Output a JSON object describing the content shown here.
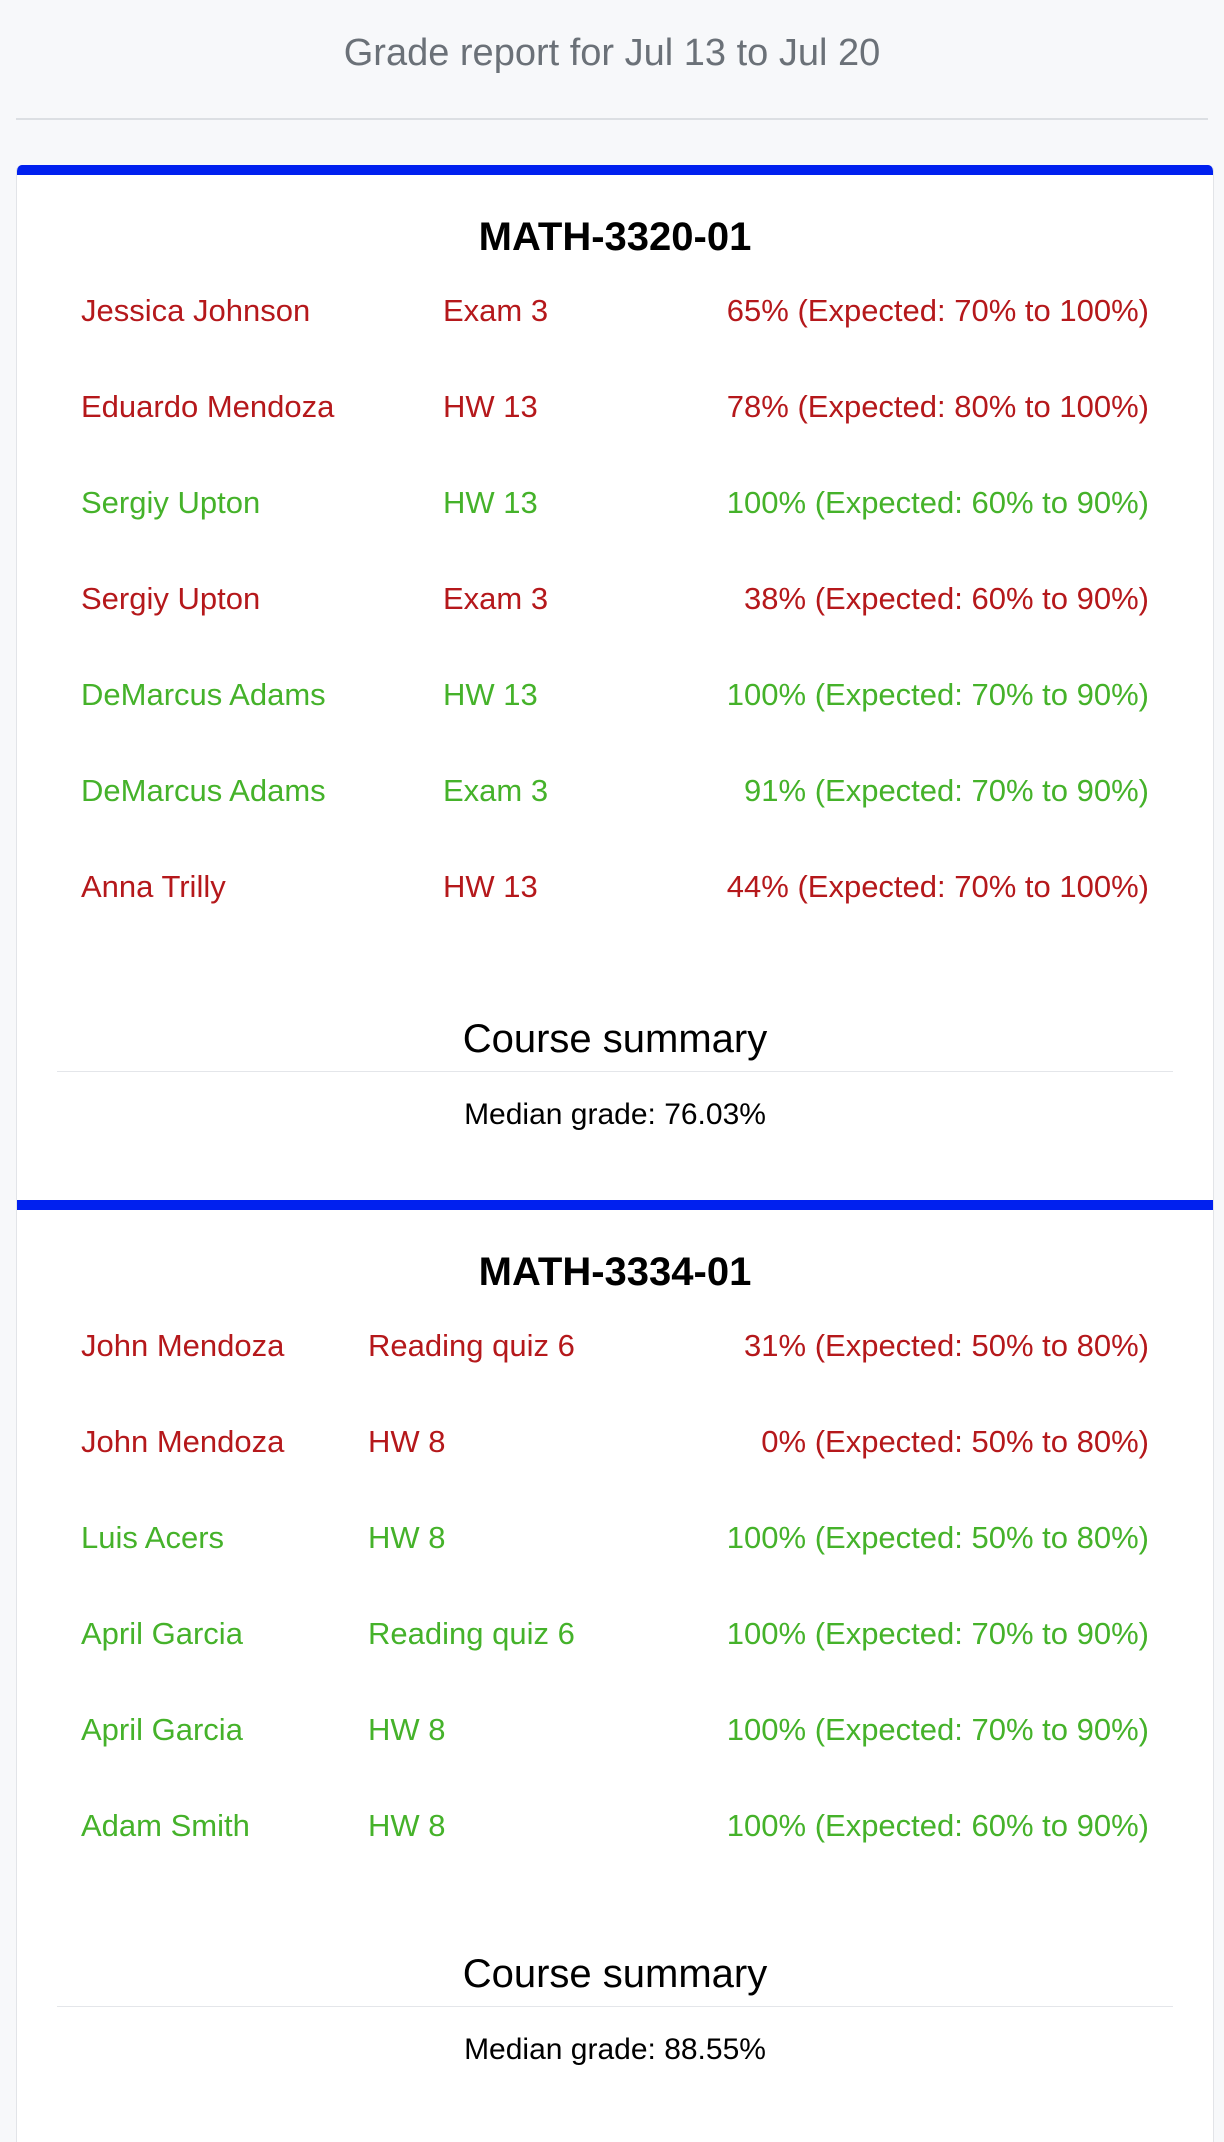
{
  "report": {
    "title": "Grade report for Jul 13 to Jul 20"
  },
  "colors": {
    "fail": "#b5181b",
    "pass": "#45b22a",
    "accent_bar": "#0020ef"
  },
  "courses": [
    {
      "name": "MATH-3320-01",
      "rows": [
        {
          "student": "Jessica Johnson",
          "assignment": "Exam 3",
          "score": "65% (Expected: 70% to 100%)",
          "status": "fail"
        },
        {
          "student": "Eduardo Mendoza",
          "assignment": "HW 13",
          "score": "78% (Expected: 80% to 100%)",
          "status": "fail"
        },
        {
          "student": "Sergiy Upton",
          "assignment": "HW 13",
          "score": "100% (Expected: 60% to 90%)",
          "status": "pass"
        },
        {
          "student": "Sergiy Upton",
          "assignment": "Exam 3",
          "score": "38% (Expected: 60% to 90%)",
          "status": "fail"
        },
        {
          "student": "DeMarcus Adams",
          "assignment": "HW 13",
          "score": "100% (Expected: 70% to 90%)",
          "status": "pass"
        },
        {
          "student": "DeMarcus Adams",
          "assignment": "Exam 3",
          "score": "91% (Expected: 70% to 90%)",
          "status": "pass"
        },
        {
          "student": "Anna Trilly",
          "assignment": "HW 13",
          "score": "44% (Expected: 70% to 100%)",
          "status": "fail"
        }
      ],
      "summary_title": "Course summary",
      "median": "Median grade: 76.03%"
    },
    {
      "name": "MATH-3334-01",
      "rows": [
        {
          "student": "John Mendoza",
          "assignment": "Reading quiz 6",
          "score": "31% (Expected: 50% to 80%)",
          "status": "fail"
        },
        {
          "student": "John Mendoza",
          "assignment": "HW 8",
          "score": "0% (Expected: 50% to 80%)",
          "status": "fail"
        },
        {
          "student": "Luis Acers",
          "assignment": "HW 8",
          "score": "100% (Expected: 50% to 80%)",
          "status": "pass"
        },
        {
          "student": "April Garcia",
          "assignment": "Reading quiz 6",
          "score": "100% (Expected: 70% to 90%)",
          "status": "pass"
        },
        {
          "student": "April Garcia",
          "assignment": "HW 8",
          "score": "100% (Expected: 70% to 90%)",
          "status": "pass"
        },
        {
          "student": "Adam Smith",
          "assignment": "HW 8",
          "score": "100% (Expected: 60% to 90%)",
          "status": "pass"
        }
      ],
      "summary_title": "Course summary",
      "median": "Median grade: 88.55%"
    }
  ]
}
